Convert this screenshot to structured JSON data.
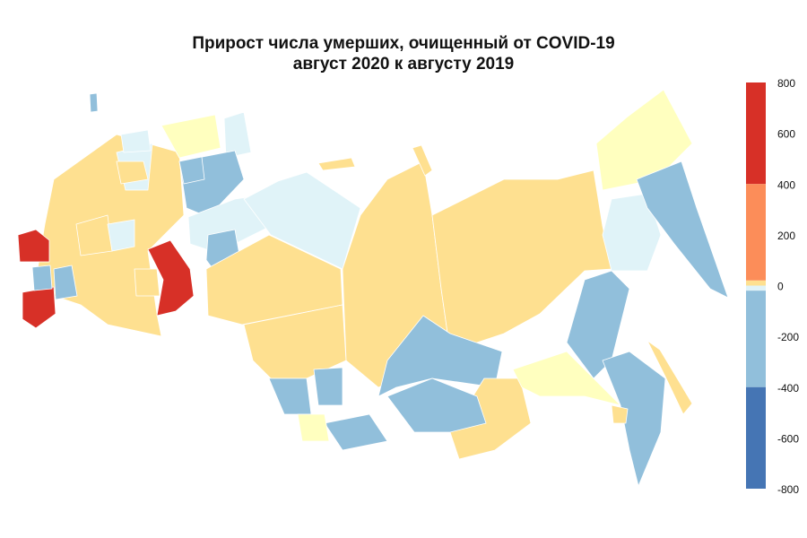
{
  "chart_data": {
    "type": "choropleth",
    "title": "Прирост числа умерших, очищенный от COVID-19",
    "subtitle": "август 2020 к августу 2019",
    "colorbar": {
      "range": [
        -800,
        800
      ],
      "ticks": [
        "800",
        "600",
        "400",
        "200",
        "0",
        "-200",
        "-400",
        "-600",
        "-800"
      ],
      "tick_values": [
        800,
        600,
        400,
        200,
        0,
        -200,
        -400,
        -600,
        -800
      ],
      "bins": [
        {
          "from": 400,
          "to": 800,
          "color": "#d73027"
        },
        {
          "from": 20,
          "to": 400,
          "color": "#fc8d59"
        },
        {
          "from": 0,
          "to": 20,
          "color": "#fee090"
        },
        {
          "from": -20,
          "to": 0,
          "color": "#e0f3f8"
        },
        {
          "from": -400,
          "to": -20,
          "color": "#91bfdb"
        },
        {
          "from": -800,
          "to": -400,
          "color": "#4575b4"
        }
      ]
    },
    "region_colors": {
      "high": "#d73027",
      "pos": "#fee090",
      "near_zero": "#ffffbf",
      "slight_neg": "#e0f3f8",
      "neg": "#91bfdb"
    },
    "regions": [
      "neg",
      "pos",
      "slight_neg",
      "near_zero",
      "slight_neg",
      "neg",
      "slight_neg",
      "neg",
      "high",
      "pos",
      "slight_neg",
      "pos",
      "pos",
      "neg",
      "neg",
      "high",
      "high",
      "neg",
      "neg",
      "pos",
      "pos",
      "pos",
      "neg",
      "pos",
      "neg",
      "neg",
      "near_zero",
      "pos",
      "near_zero",
      "neg",
      "neg",
      "pos",
      "slight_neg",
      "near_zero",
      "neg",
      "pos",
      "pos",
      "slight_neg",
      "pos",
      "neg",
      "slight_neg"
    ]
  }
}
